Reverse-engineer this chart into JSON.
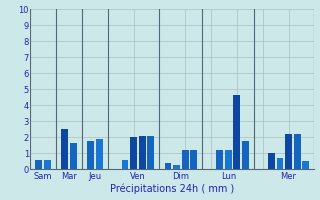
{
  "bars": [
    {
      "x": 1,
      "val": 0.6,
      "color": "#1565c0"
    },
    {
      "x": 2,
      "val": 0.6,
      "color": "#1976d2"
    },
    {
      "x": 4,
      "val": 2.55,
      "color": "#0d47a1"
    },
    {
      "x": 5,
      "val": 1.65,
      "color": "#1565c0"
    },
    {
      "x": 7,
      "val": 1.8,
      "color": "#1565c0"
    },
    {
      "x": 8,
      "val": 1.9,
      "color": "#1976d2"
    },
    {
      "x": 11,
      "val": 0.6,
      "color": "#1976d2"
    },
    {
      "x": 12,
      "val": 2.05,
      "color": "#0d47a1"
    },
    {
      "x": 13,
      "val": 2.1,
      "color": "#0d47a1"
    },
    {
      "x": 14,
      "val": 2.1,
      "color": "#1565c0"
    },
    {
      "x": 16,
      "val": 0.4,
      "color": "#1565c0"
    },
    {
      "x": 17,
      "val": 0.3,
      "color": "#1976d2"
    },
    {
      "x": 18,
      "val": 1.2,
      "color": "#1565c0"
    },
    {
      "x": 19,
      "val": 1.2,
      "color": "#1565c0"
    },
    {
      "x": 22,
      "val": 1.2,
      "color": "#1565c0"
    },
    {
      "x": 23,
      "val": 1.2,
      "color": "#1976d2"
    },
    {
      "x": 24,
      "val": 4.65,
      "color": "#0d47a1"
    },
    {
      "x": 25,
      "val": 1.8,
      "color": "#1565c0"
    },
    {
      "x": 28,
      "val": 1.0,
      "color": "#0d47a1"
    },
    {
      "x": 29,
      "val": 0.7,
      "color": "#1976d2"
    },
    {
      "x": 30,
      "val": 2.2,
      "color": "#0d47a1"
    },
    {
      "x": 31,
      "val": 2.2,
      "color": "#1565c0"
    },
    {
      "x": 32,
      "val": 0.5,
      "color": "#1976d2"
    }
  ],
  "separators": [
    0,
    3,
    6,
    9,
    15,
    20,
    26,
    33
  ],
  "day_labels": [
    {
      "label": "Sam",
      "x": 1.5
    },
    {
      "label": "Mar",
      "x": 4.5
    },
    {
      "label": "Jeu",
      "x": 7.5
    },
    {
      "label": "Ven",
      "x": 12.5
    },
    {
      "label": "Dim",
      "x": 17.5
    },
    {
      "label": "Lun",
      "x": 23.0
    },
    {
      "label": "Mer",
      "x": 30.0
    }
  ],
  "xlabel": "Précipitations 24h ( mm )",
  "ylim": [
    0,
    10
  ],
  "yticks": [
    0,
    1,
    2,
    3,
    4,
    5,
    6,
    7,
    8,
    9,
    10
  ],
  "xlim": [
    0,
    33
  ],
  "bg_color": "#cce8e8",
  "grid_color": "#aabfbf",
  "bar_width": 0.8,
  "xlabel_color": "#2222bb",
  "tick_color": "#2222bb",
  "sep_color": "#556677"
}
